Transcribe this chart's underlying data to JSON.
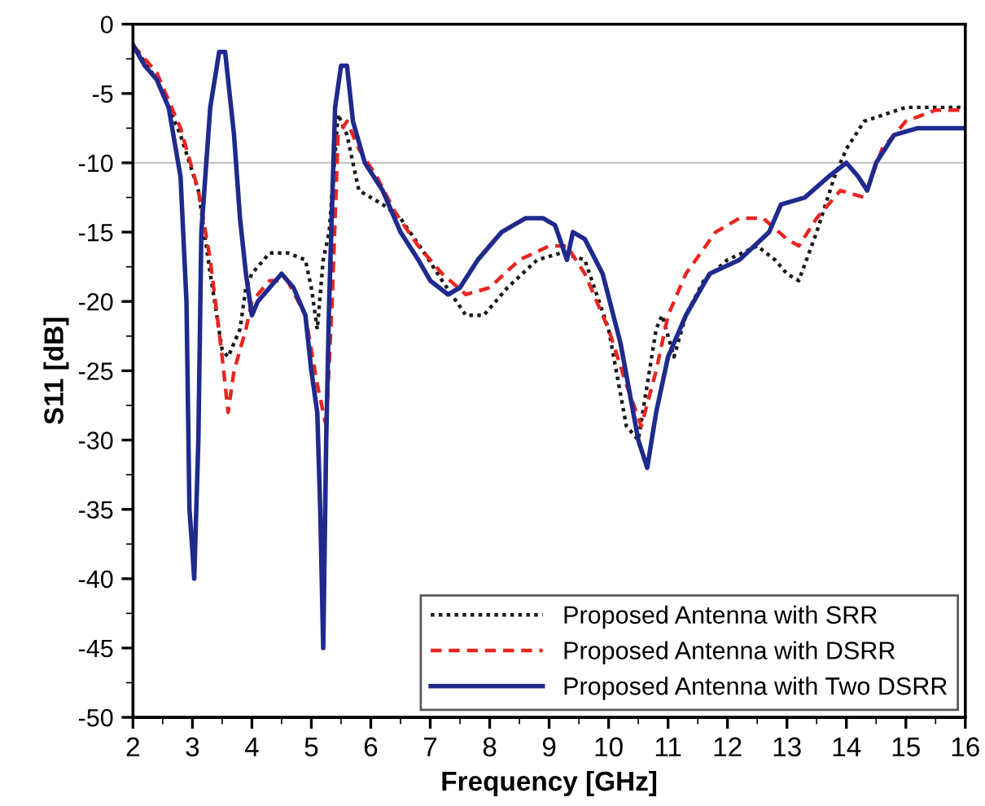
{
  "chart_data": {
    "type": "line",
    "xlabel": "Frequency [GHz]",
    "ylabel": "S11 [dB]",
    "xlim": [
      2,
      16
    ],
    "ylim": [
      -50,
      0
    ],
    "xticks": [
      2,
      3,
      4,
      5,
      6,
      7,
      8,
      9,
      10,
      11,
      12,
      13,
      14,
      15,
      16
    ],
    "yticks": [
      0,
      -5,
      -10,
      -15,
      -20,
      -25,
      -30,
      -35,
      -40,
      -45,
      -50
    ],
    "grid": false,
    "legend": "bottom right",
    "ref_lines": [
      {
        "axis": "y",
        "value": -10,
        "color": "#c8c8c8",
        "line_style": "solid"
      }
    ],
    "series": [
      {
        "name": "Proposed Antenna with SRR",
        "color": "#1a1a1a",
        "line_style": "dotted",
        "x": [
          2.0,
          2.4,
          2.8,
          3.1,
          3.3,
          3.5,
          3.6,
          3.8,
          3.9,
          4.0,
          4.3,
          4.6,
          4.9,
          5.0,
          5.1,
          5.2,
          5.3,
          5.45,
          5.6,
          5.8,
          6.2,
          6.5,
          6.9,
          7.2,
          7.6,
          7.9,
          8.3,
          8.8,
          9.2,
          9.6,
          10.0,
          10.3,
          10.5,
          10.8,
          10.9,
          11.1,
          11.3,
          11.6,
          12.0,
          12.5,
          12.8,
          13.0,
          13.2,
          13.5,
          13.8,
          14.0,
          14.3,
          15.0,
          15.5,
          16.0
        ],
        "values": [
          -1.5,
          -4,
          -8,
          -12,
          -18,
          -23.5,
          -24,
          -22,
          -19,
          -18,
          -16.5,
          -16.5,
          -17,
          -19,
          -22,
          -17,
          -15,
          -6.5,
          -8,
          -12,
          -13,
          -14,
          -16.5,
          -18.5,
          -21,
          -21,
          -19,
          -17,
          -16.5,
          -17,
          -22,
          -29,
          -30,
          -22,
          -21,
          -24,
          -21,
          -18.5,
          -17,
          -16,
          -17,
          -18,
          -18.5,
          -15,
          -11,
          -9,
          -7,
          -6,
          -6,
          -6
        ]
      },
      {
        "name": "Proposed Antenna with DSRR",
        "color": "#e8251f",
        "line_style": "dashed",
        "x": [
          2.0,
          2.4,
          2.8,
          3.1,
          3.3,
          3.5,
          3.6,
          3.7,
          3.9,
          4.0,
          4.3,
          4.6,
          4.9,
          5.1,
          5.25,
          5.35,
          5.45,
          5.6,
          5.8,
          6.1,
          6.4,
          6.8,
          7.2,
          7.6,
          8.0,
          8.5,
          9.0,
          9.3,
          9.6,
          10.0,
          10.3,
          10.55,
          10.8,
          11.0,
          11.3,
          11.8,
          12.2,
          12.6,
          13.0,
          13.2,
          13.5,
          13.9,
          14.3,
          14.6,
          15.0,
          15.5,
          16.0
        ],
        "values": [
          -1.5,
          -3.5,
          -7.5,
          -12,
          -17,
          -24,
          -28,
          -25,
          -22,
          -20,
          -18.5,
          -18.5,
          -21,
          -26,
          -29,
          -20,
          -8,
          -7,
          -9,
          -11,
          -13.5,
          -16,
          -18,
          -19.5,
          -19,
          -17,
          -16,
          -16,
          -18,
          -22,
          -26,
          -29,
          -25,
          -21,
          -18,
          -15,
          -14,
          -14,
          -15.5,
          -16,
          -14,
          -12,
          -12.5,
          -9,
          -7,
          -6.2,
          -6.2
        ]
      },
      {
        "name": "Proposed Antenna with Two DSRR",
        "color": "#1f2a8c",
        "line_style": "solid",
        "x": [
          2.0,
          2.2,
          2.4,
          2.6,
          2.8,
          2.9,
          2.95,
          3.0,
          3.03,
          3.1,
          3.15,
          3.3,
          3.45,
          3.55,
          3.7,
          3.8,
          3.9,
          4.0,
          4.1,
          4.3,
          4.5,
          4.7,
          4.9,
          5.0,
          5.1,
          5.15,
          5.2,
          5.25,
          5.3,
          5.4,
          5.5,
          5.6,
          5.7,
          5.9,
          6.2,
          6.5,
          6.8,
          7.0,
          7.3,
          7.5,
          7.8,
          8.2,
          8.6,
          8.9,
          9.1,
          9.3,
          9.4,
          9.6,
          9.9,
          10.2,
          10.5,
          10.65,
          10.8,
          11.0,
          11.3,
          11.7,
          12.2,
          12.7,
          12.9,
          13.3,
          13.7,
          14.0,
          14.2,
          14.35,
          14.5,
          14.8,
          15.2,
          16.0
        ],
        "values": [
          -1.5,
          -3,
          -4,
          -6,
          -11,
          -20,
          -35,
          -38,
          -40,
          -30,
          -15,
          -6,
          -2,
          -2,
          -8,
          -14,
          -18,
          -21,
          -20,
          -19,
          -18,
          -19,
          -21,
          -25,
          -28,
          -35,
          -45,
          -30,
          -20,
          -6,
          -3,
          -3,
          -7,
          -10,
          -12,
          -15,
          -17,
          -18.5,
          -19.5,
          -19,
          -17,
          -15,
          -14,
          -14,
          -14.5,
          -17,
          -15,
          -15.5,
          -18,
          -23,
          -30,
          -32,
          -28,
          -24,
          -21,
          -18,
          -17,
          -15,
          -13,
          -12.5,
          -11,
          -10,
          -11,
          -12,
          -10,
          -8,
          -7.5,
          -7.5
        ]
      }
    ]
  }
}
